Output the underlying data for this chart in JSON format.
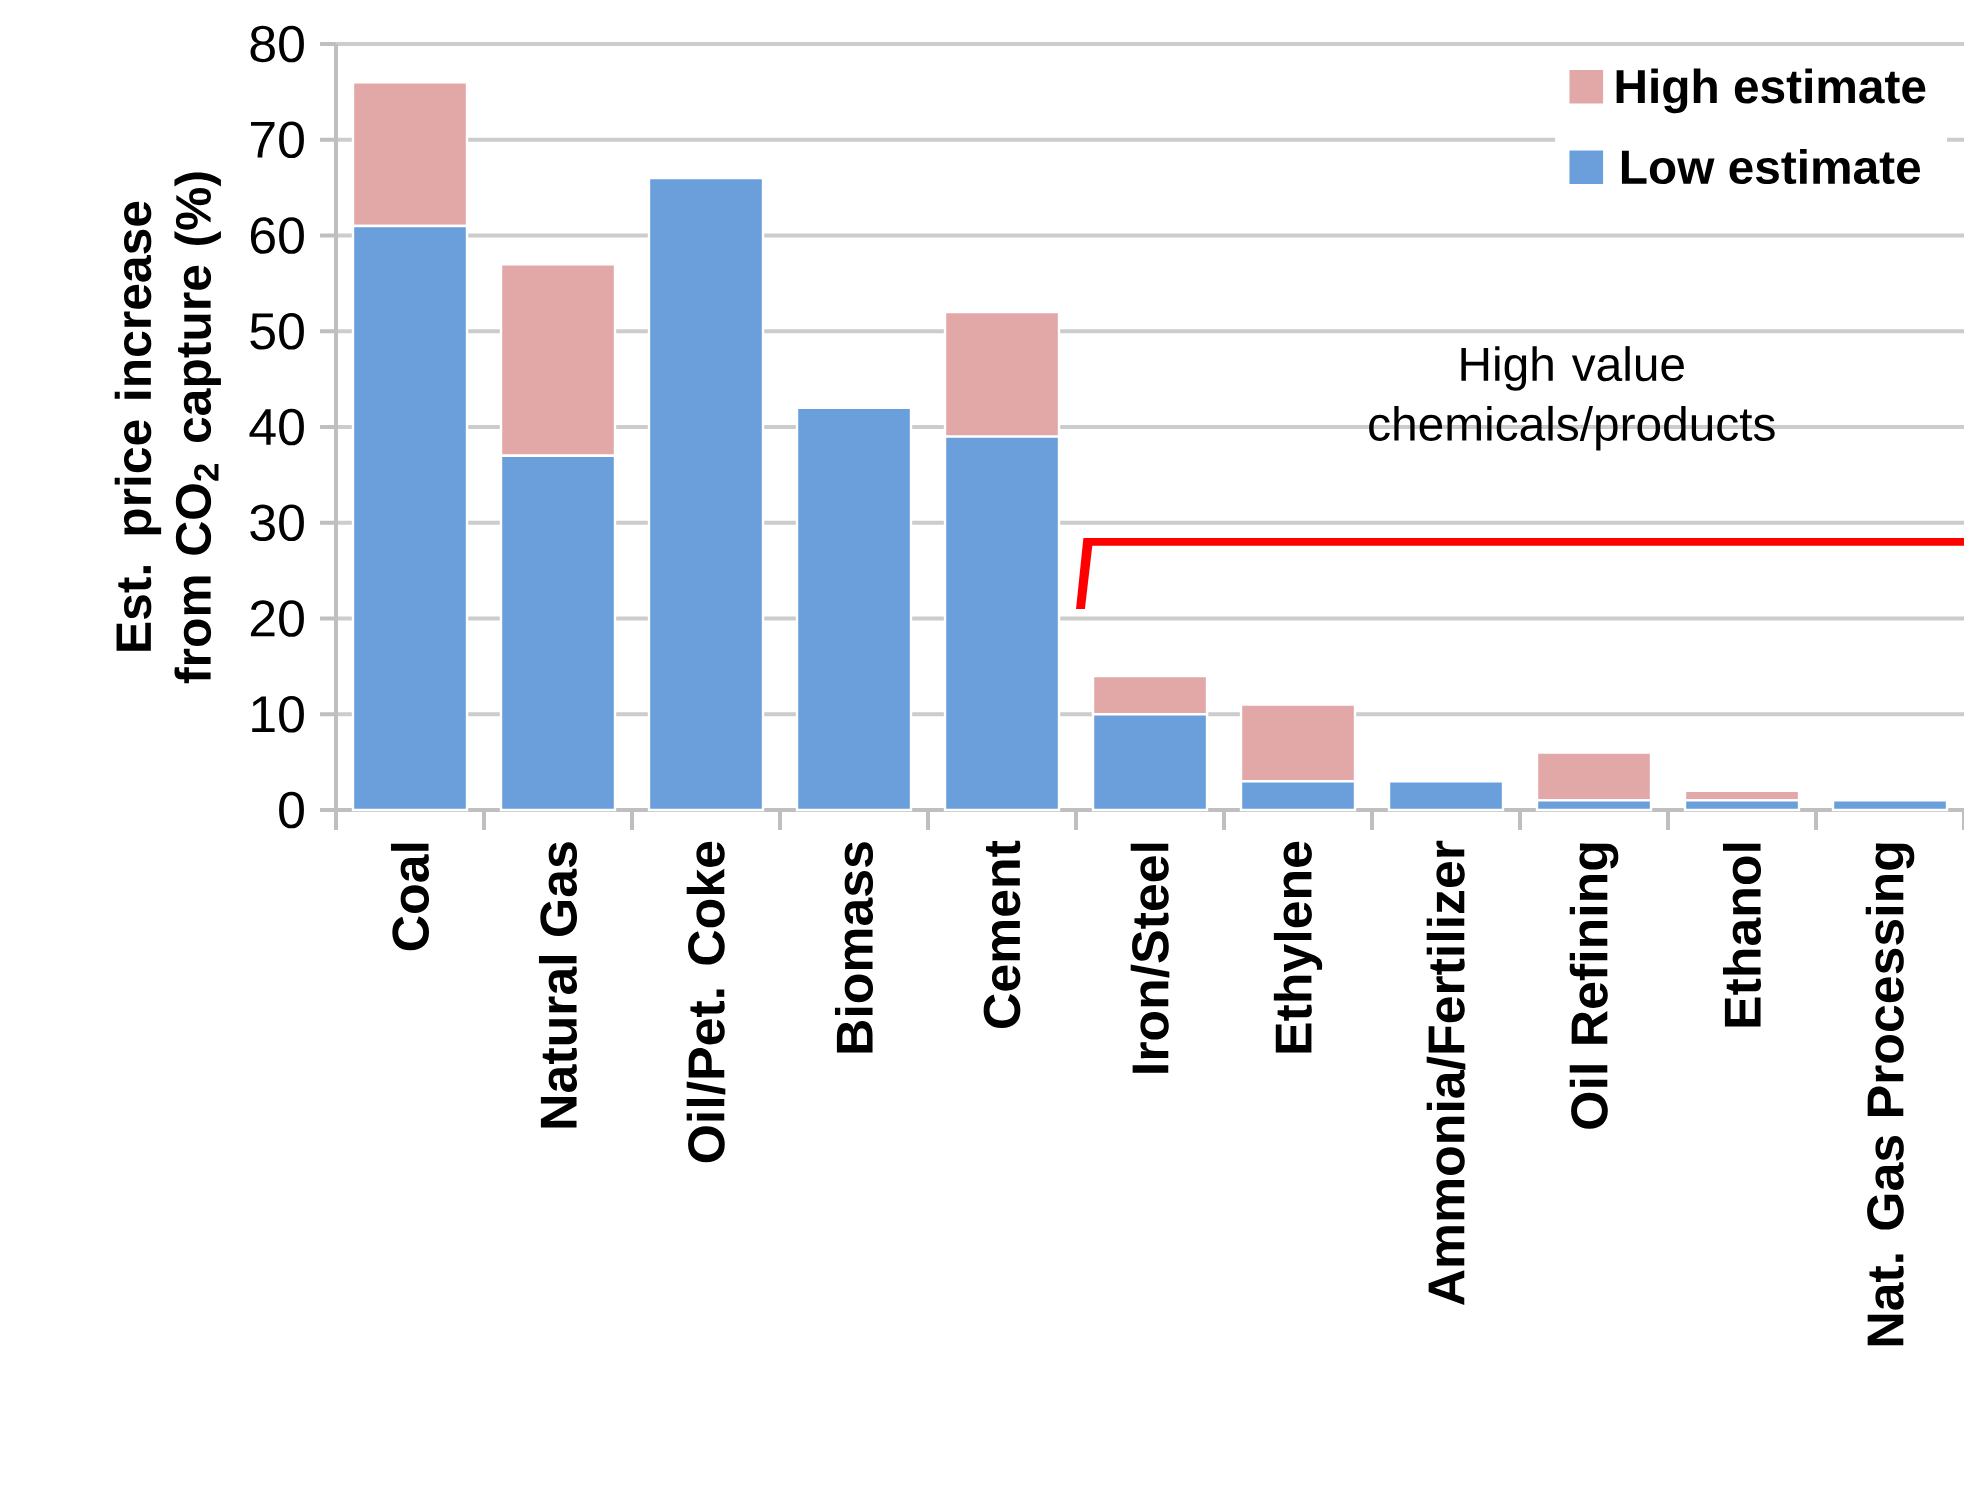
{
  "chart_data": {
    "type": "bar",
    "stacked": true,
    "categories": [
      "Coal",
      "Natural Gas",
      "Oil/Pet. Coke",
      "Biomass",
      "Cement",
      "Iron/Steel",
      "Ethylene",
      "Ammonia/Fertilizer",
      "Oil Refining",
      "Ethanol",
      "Nat. Gas Processing"
    ],
    "series": [
      {
        "name": "Low estimate",
        "color": "#6a9fdc",
        "values": [
          61,
          37,
          66,
          42,
          39,
          10,
          3,
          3,
          1,
          1,
          1
        ]
      },
      {
        "name": "High estimate",
        "color": "#e2a8a8",
        "values": [
          15,
          20,
          0,
          0,
          13,
          4,
          8,
          0,
          5,
          1,
          0
        ]
      }
    ],
    "ylabel": "Est. price increase from CO$_{2}$ capture (%)",
    "ylim": [
      0,
      80
    ],
    "yticks": [
      0,
      10,
      20,
      30,
      40,
      50,
      60,
      70,
      80
    ],
    "grid": "y",
    "legend": "top right",
    "annotations": [
      "High value chemicals/products"
    ]
  }
}
